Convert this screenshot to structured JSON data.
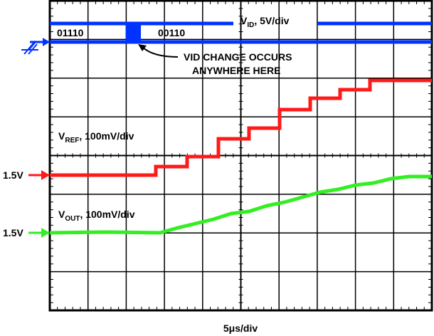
{
  "traces": {
    "vid": {
      "label": {
        "main": "V",
        "sub": "ID",
        "rest": ", 5V/div"
      },
      "codes": [
        "01110",
        "00110"
      ]
    },
    "note": [
      "VID CHANGE OCCURS",
      "ANYWHERE HERE"
    ],
    "vref": {
      "label": {
        "main": "V",
        "sub": "REF",
        "rest": ", 100mV/div"
      },
      "level": "1.5V"
    },
    "vout": {
      "label": {
        "main": "V",
        "sub": "OUT",
        "rest": ", 100mV/div"
      },
      "level": "1.5V"
    }
  },
  "timebase": "5μs/div"
}
